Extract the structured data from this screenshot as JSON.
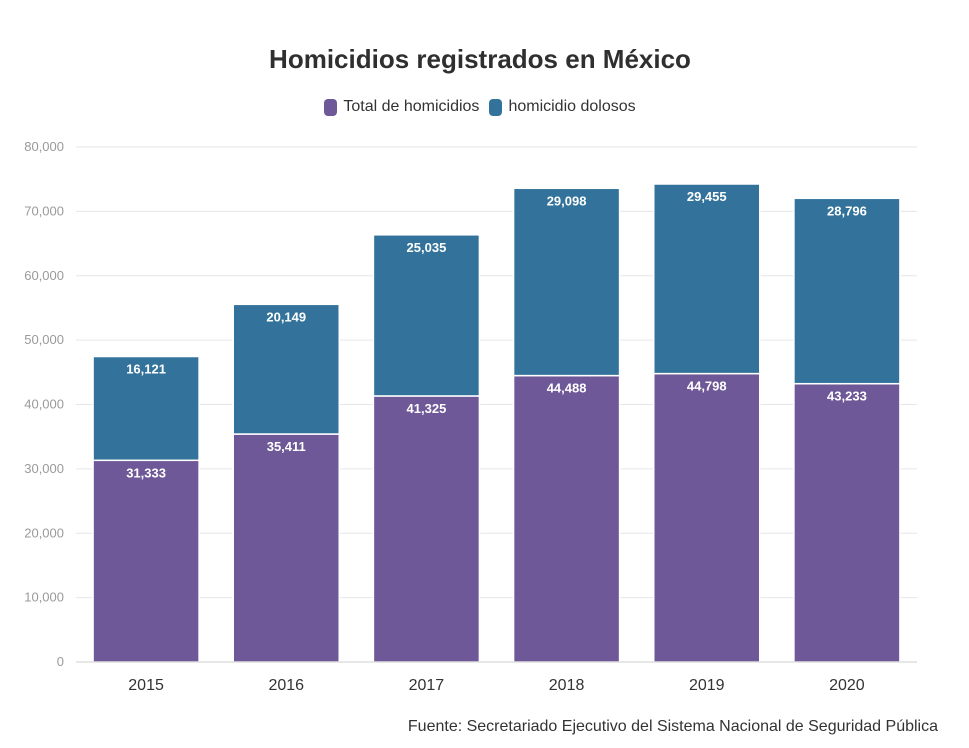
{
  "chart_data": {
    "type": "bar",
    "stacked": true,
    "title": "Homicidios registrados en México",
    "categories": [
      "2015",
      "2016",
      "2017",
      "2018",
      "2019",
      "2020"
    ],
    "series": [
      {
        "name": "Total de homicidios",
        "color": "#6e5897",
        "values": [
          31333,
          35411,
          41325,
          44488,
          44798,
          43233
        ],
        "labels": [
          "31,333",
          "35,411",
          "41,325",
          "44,488",
          "44,798",
          "43,233"
        ]
      },
      {
        "name": "homicidio dolosos",
        "color": "#33739b",
        "values": [
          16121,
          20149,
          25035,
          29098,
          29455,
          28796
        ],
        "labels": [
          "16,121",
          "20,149",
          "25,035",
          "29,098",
          "29,455",
          "28,796"
        ]
      }
    ],
    "ylim": [
      0,
      80000
    ],
    "yticks": [
      0,
      10000,
      20000,
      30000,
      40000,
      50000,
      60000,
      70000,
      80000
    ],
    "ytick_labels": [
      "0",
      "10,000",
      "20,000",
      "30,000",
      "40,000",
      "50,000",
      "60,000",
      "70,000",
      "80,000"
    ],
    "grid": true,
    "legend_position": "top-center",
    "source": "Fuente: Secretariado Ejecutivo del Sistema Nacional de Seguridad Pública"
  }
}
